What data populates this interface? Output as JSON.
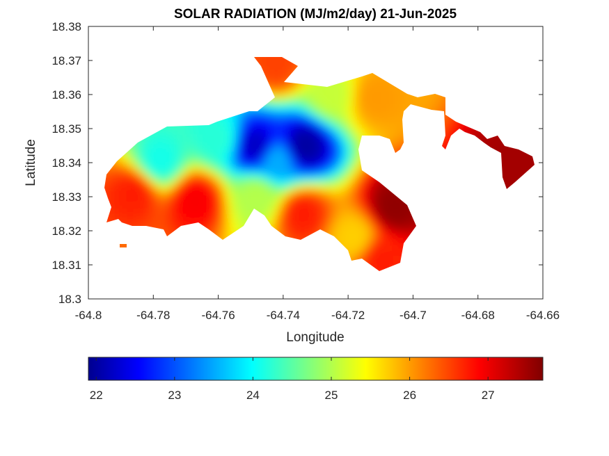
{
  "chart_data": {
    "type": "heatmap",
    "title": "SOLAR RADIATION (MJ/m2/day) 21-Jun-2025",
    "xlabel": "Longitude",
    "ylabel": "Latitude",
    "xlim": [
      -64.8,
      -64.66
    ],
    "ylim": [
      18.3,
      18.38
    ],
    "xticks": [
      -64.8,
      -64.78,
      -64.76,
      -64.74,
      -64.72,
      -64.7,
      -64.68,
      -64.66
    ],
    "xtick_labels": [
      "-64.8",
      "-64.78",
      "-64.76",
      "-64.74",
      "-64.72",
      "-64.7",
      "-64.68",
      "-64.66"
    ],
    "yticks": [
      18.3,
      18.31,
      18.32,
      18.33,
      18.34,
      18.35,
      18.36,
      18.37,
      18.38
    ],
    "ytick_labels": [
      "18.3",
      "18.31",
      "18.32",
      "18.33",
      "18.34",
      "18.35",
      "18.36",
      "18.37",
      "18.38"
    ],
    "colormap": "jet",
    "clim": [
      21.9,
      27.7
    ],
    "colorbar": {
      "location": "bottom",
      "ticks": [
        22,
        23,
        24,
        25,
        26,
        27
      ],
      "tick_labels": [
        "22",
        "23",
        "24",
        "25",
        "26",
        "27"
      ]
    },
    "grid": false,
    "regions": [
      {
        "lon": -64.7485,
        "lat": 18.3447,
        "value": 22.3
      },
      {
        "lon": -64.7335,
        "lat": 18.3447,
        "value": 22.1
      },
      {
        "lon": -64.742,
        "lat": 18.3405,
        "value": 23.6
      },
      {
        "lon": -64.76,
        "lat": 18.347,
        "value": 24.3
      },
      {
        "lon": -64.778,
        "lat": 18.3405,
        "value": 24.2
      },
      {
        "lon": -64.767,
        "lat": 18.329,
        "value": 27.0
      },
      {
        "lon": -64.786,
        "lat": 18.331,
        "value": 26.8
      },
      {
        "lon": -64.706,
        "lat": 18.327,
        "value": 27.6
      },
      {
        "lon": -64.6705,
        "lat": 18.3375,
        "value": 27.5
      },
      {
        "lon": -64.734,
        "lat": 18.325,
        "value": 26.8
      },
      {
        "lon": -64.748,
        "lat": 18.33,
        "value": 25.1
      },
      {
        "lon": -64.712,
        "lat": 18.359,
        "value": 26.1
      },
      {
        "lon": -64.742,
        "lat": 18.369,
        "value": 26.6
      },
      {
        "lon": -64.725,
        "lat": 18.36,
        "value": 25.2
      },
      {
        "lon": -64.71,
        "lat": 18.312,
        "value": 26.8
      },
      {
        "lon": -64.718,
        "lat": 18.318,
        "value": 25.8
      }
    ]
  }
}
